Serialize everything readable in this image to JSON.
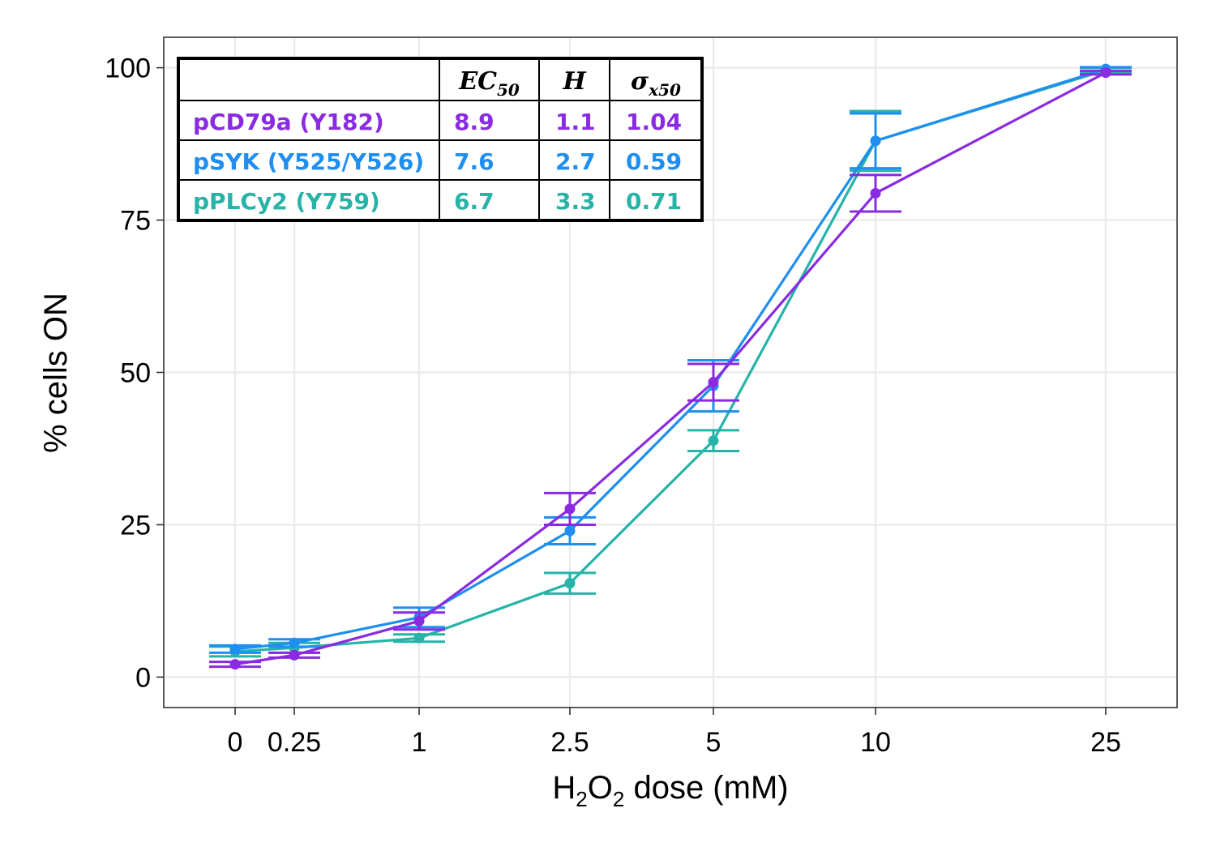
{
  "chart_data": {
    "type": "line",
    "xlabel": {
      "prefix": "H",
      "sub1": "2",
      "mid": "O",
      "sub2": "2",
      "suffix": " dose (mM)"
    },
    "ylabel": "% cells ON",
    "x_ticks": [
      "0",
      "0.25",
      "1",
      "2.5",
      "5",
      "10",
      "25"
    ],
    "y_ticks": [
      "0",
      "25",
      "50",
      "75",
      "100"
    ],
    "ylim": [
      -5,
      105
    ],
    "grid": true,
    "series": [
      {
        "name": "pPLCγ2 (Y759)",
        "color": "#26b3a8",
        "values": [
          4.2,
          4.8,
          6.4,
          15.4,
          38.8,
          88.0,
          99.6
        ],
        "err": [
          0.8,
          0.8,
          0.6,
          1.7,
          1.7,
          4.9,
          0.4
        ]
      },
      {
        "name": "pSYK (Y525/Y526)",
        "color": "#1e8ff0",
        "values": [
          4.6,
          5.6,
          9.8,
          24.0,
          47.8,
          88.0,
          99.8
        ],
        "err": [
          0.6,
          0.6,
          1.6,
          2.2,
          4.2,
          4.5,
          0.3
        ]
      },
      {
        "name": "pCD79a (Y182)",
        "color": "#8a2be2",
        "values": [
          2.1,
          3.6,
          9.2,
          27.6,
          48.4,
          79.4,
          99.2
        ],
        "err": [
          0.4,
          0.4,
          1.4,
          2.6,
          3.0,
          3.0,
          0.3
        ]
      }
    ]
  },
  "table": {
    "headers": {
      "col1": {
        "main": "EC",
        "sub": "50"
      },
      "col2": {
        "main": "H",
        "sub": ""
      },
      "col3": {
        "main": "σ",
        "sub": "x50"
      }
    },
    "rows": [
      {
        "label": "pCD79a (Y182)",
        "ec50": "8.9",
        "h": "1.1",
        "sigma": "1.04",
        "color": "#8a2be2"
      },
      {
        "label": "pSYK (Y525/Y526)",
        "ec50": "7.6",
        "h": "2.7",
        "sigma": "0.59",
        "color": "#1e8ff0"
      },
      {
        "label": "pPLCy2 (Y759)",
        "ec50": "6.7",
        "h": "3.3",
        "sigma": "0.71",
        "color": "#26b3a8"
      }
    ]
  }
}
